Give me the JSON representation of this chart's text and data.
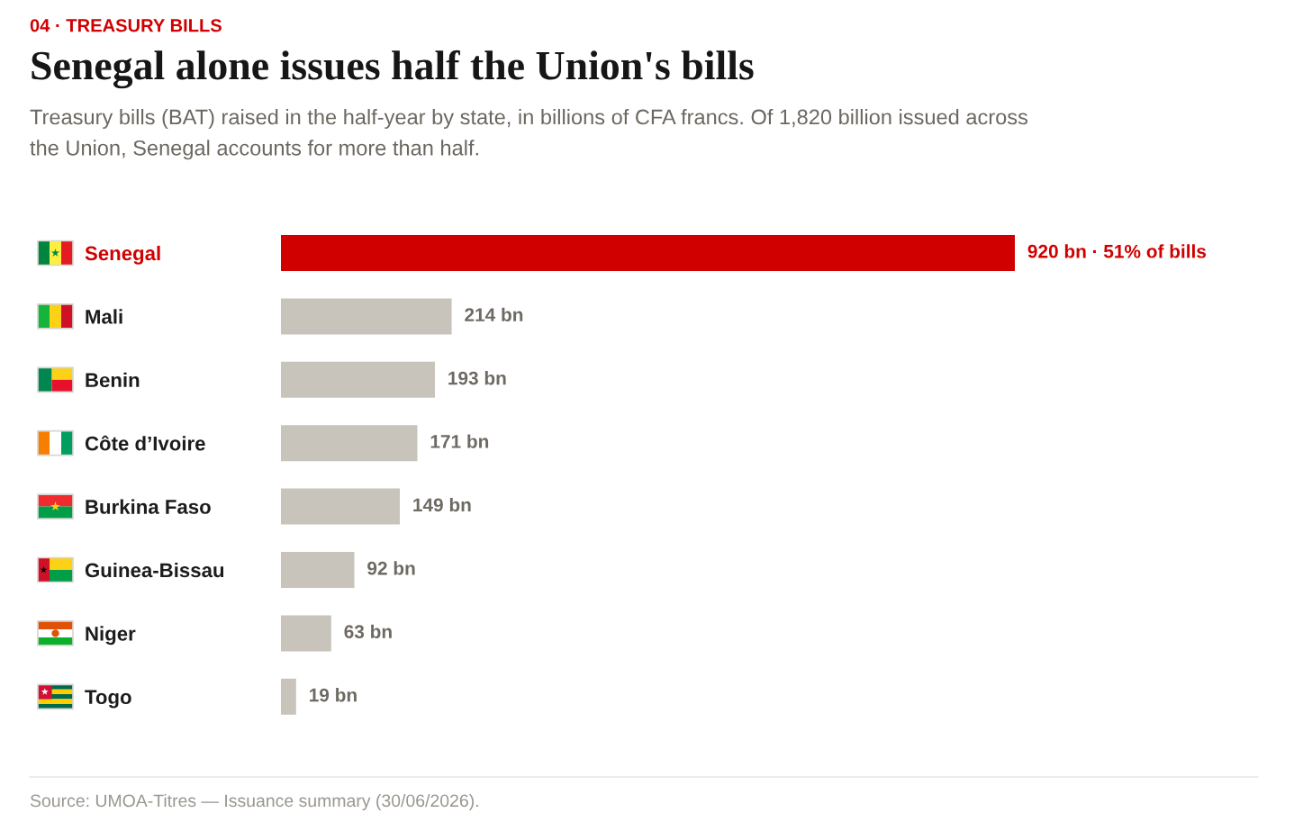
{
  "chart_data": {
    "type": "bar",
    "orientation": "horizontal",
    "title": "Senegal alone issues half the Union's bills",
    "subtitle": "Treasury bills (BAT) raised in the half-year by state, in billions of CFA francs. Of 1,820 billion issued across\nthe Union, Senegal accounts for more than half.",
    "categories": [
      "Senegal",
      "Mali",
      "Benin",
      "Côte d’Ivoire",
      "Burkina Faso",
      "Guinea-Bissau",
      "Niger",
      "Togo"
    ],
    "values": [
      920,
      214,
      193,
      171,
      149,
      92,
      63,
      19
    ],
    "colors": [
      "#d00000",
      "#c8c4bb",
      "#c8c4bb",
      "#c8c4bb",
      "#c8c4bb",
      "#c8c4bb",
      "#c8c4bb",
      "#c8c4bb"
    ],
    "value_labels": [
      "920 bn",
      "214 bn",
      "193 bn",
      "171 bn",
      "149 bn",
      "92 bn",
      "63 bn",
      "19 bn"
    ],
    "tick_labels": "y",
    "annotations": [
      "04 · TREASURY BILLS",
      "· 51% of bills",
      "Source: UMOA-Titres — Issuance summary (30/06/2026)."
    ]
  }
}
